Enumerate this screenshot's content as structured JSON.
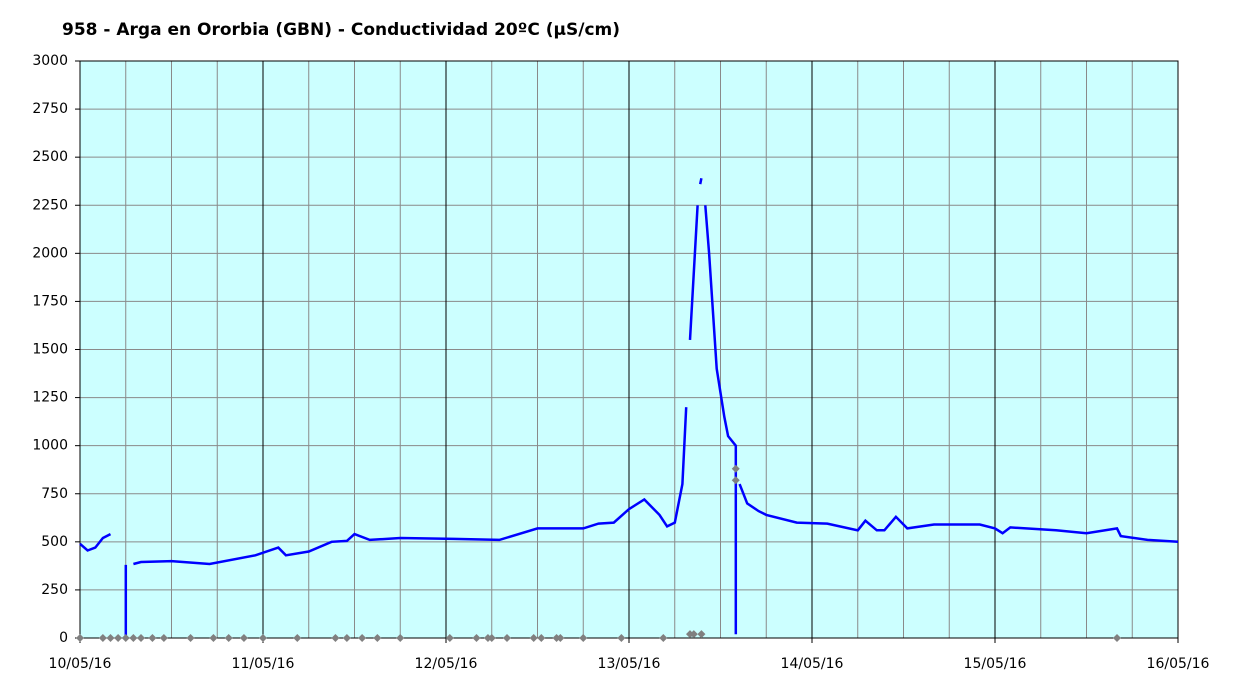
{
  "chart_data": {
    "type": "line",
    "title": "958 - Arga en Ororbia (GBN) - Conductividad 20ºC (µS/cm)",
    "xlim": [
      "2016-05-10T00:00",
      "2016-05-16T00:00"
    ],
    "xticks": [
      {
        "value": "2016-05-10T00:00",
        "label": "10/05/16"
      },
      {
        "value": "2016-05-11T00:00",
        "label": "11/05/16"
      },
      {
        "value": "2016-05-12T00:00",
        "label": "12/05/16"
      },
      {
        "value": "2016-05-13T00:00",
        "label": "13/05/16"
      },
      {
        "value": "2016-05-14T00:00",
        "label": "14/05/16"
      },
      {
        "value": "2016-05-15T00:00",
        "label": "15/05/16"
      },
      {
        "value": "2016-05-16T00:00",
        "label": "16/05/16"
      }
    ],
    "xminorticks": [
      "2016-05-10T06:00",
      "2016-05-10T12:00",
      "2016-05-10T18:00",
      "2016-05-11T06:00",
      "2016-05-11T12:00",
      "2016-05-11T18:00",
      "2016-05-12T06:00",
      "2016-05-12T12:00",
      "2016-05-12T18:00",
      "2016-05-13T06:00",
      "2016-05-13T12:00",
      "2016-05-13T18:00",
      "2016-05-14T06:00",
      "2016-05-14T12:00",
      "2016-05-14T18:00",
      "2016-05-15T06:00",
      "2016-05-15T12:00",
      "2016-05-15T18:00"
    ],
    "ylim": [
      0,
      3000
    ],
    "yticks": [
      0,
      250,
      500,
      750,
      1000,
      1250,
      1500,
      1750,
      2000,
      2250,
      2500,
      2750,
      3000
    ],
    "grid": true,
    "background": "#ccffff",
    "series": [
      {
        "color": "#0000ff",
        "line": true,
        "x": [
          "2016-05-10T00:00",
          "2016-05-10T01:00",
          "2016-05-10T02:00",
          "2016-05-10T03:00",
          "2016-05-10T04:00",
          "2016-05-10T05:00",
          "2016-05-10T06:00",
          "2016-05-10T06:00",
          "2016-05-10T06:30",
          "2016-05-10T07:00",
          "2016-05-10T08:00",
          "2016-05-10T12:00",
          "2016-05-10T17:00",
          "2016-05-10T23:00",
          "2016-05-11T02:00",
          "2016-05-11T03:00",
          "2016-05-11T06:00",
          "2016-05-11T09:00",
          "2016-05-11T11:00",
          "2016-05-11T12:00",
          "2016-05-11T14:00",
          "2016-05-11T18:00",
          "2016-05-12T01:00",
          "2016-05-12T07:00",
          "2016-05-12T12:00",
          "2016-05-12T18:00",
          "2016-05-12T20:00",
          "2016-05-12T22:00",
          "2016-05-13T00:00",
          "2016-05-13T02:00",
          "2016-05-13T04:00",
          "2016-05-13T05:00",
          "2016-05-13T06:00",
          "2016-05-13T07:00",
          "2016-05-13T07:30",
          "2016-05-13T07:45",
          "2016-05-13T08:00",
          "2016-05-13T09:00",
          "2016-05-13T09:15",
          "2016-05-13T09:20",
          "2016-05-13T09:30",
          "2016-05-13T09:45",
          "2016-05-13T10:00",
          "2016-05-13T10:30",
          "2016-05-13T11:00",
          "2016-05-13T11:30",
          "2016-05-13T12:30",
          "2016-05-13T13:00",
          "2016-05-13T14:00",
          "2016-05-13T14:00",
          "2016-05-13T14:15",
          "2016-05-13T14:30",
          "2016-05-13T15:30",
          "2016-05-13T17:00",
          "2016-05-13T18:00",
          "2016-05-13T22:00",
          "2016-05-14T02:00",
          "2016-05-14T06:00",
          "2016-05-14T07:00",
          "2016-05-14T08:30",
          "2016-05-14T09:30",
          "2016-05-14T11:00",
          "2016-05-14T12:30",
          "2016-05-14T16:00",
          "2016-05-14T22:00",
          "2016-05-15T00:00",
          "2016-05-15T01:00",
          "2016-05-15T02:00",
          "2016-05-15T08:00",
          "2016-05-15T12:00",
          "2016-05-15T16:00",
          "2016-05-15T16:30",
          "2016-05-15T20:00",
          "2016-05-16T00:00"
        ],
        "values": [
          490,
          455,
          470,
          520,
          540,
          null,
          380,
          0,
          null,
          385,
          395,
          400,
          385,
          430,
          470,
          430,
          450,
          500,
          505,
          540,
          510,
          520,
          515,
          510,
          570,
          570,
          595,
          600,
          670,
          720,
          640,
          580,
          600,
          800,
          1200,
          null,
          1550,
          2250,
          null,
          2360,
          2390,
          null,
          2250,
          2000,
          1700,
          1400,
          1150,
          1050,
          1000,
          20,
          null,
          800,
          700,
          660,
          640,
          600,
          595,
          560,
          610,
          560,
          560,
          630,
          570,
          590,
          590,
          570,
          545,
          575,
          560,
          545,
          570,
          530,
          510,
          500
        ]
      },
      {
        "color": "#808080",
        "line": false,
        "marker": "diamond",
        "x": [
          "2016-05-10T00:00",
          "2016-05-10T03:00",
          "2016-05-10T04:00",
          "2016-05-10T05:00",
          "2016-05-10T06:00",
          "2016-05-10T07:00",
          "2016-05-10T08:00",
          "2016-05-10T09:30",
          "2016-05-10T11:00",
          "2016-05-10T14:30",
          "2016-05-10T17:30",
          "2016-05-10T19:30",
          "2016-05-10T21:30",
          "2016-05-11T00:00",
          "2016-05-11T04:30",
          "2016-05-11T09:30",
          "2016-05-11T11:00",
          "2016-05-11T13:00",
          "2016-05-11T15:00",
          "2016-05-11T18:00",
          "2016-05-12T00:30",
          "2016-05-12T04:00",
          "2016-05-12T05:30",
          "2016-05-12T06:00",
          "2016-05-12T08:00",
          "2016-05-12T11:30",
          "2016-05-12T12:30",
          "2016-05-12T14:30",
          "2016-05-12T15:00",
          "2016-05-12T18:00",
          "2016-05-12T23:00",
          "2016-05-13T04:30",
          "2016-05-13T08:00",
          "2016-05-13T08:30",
          "2016-05-13T09:30",
          "2016-05-13T14:00",
          "2016-05-13T14:00",
          "2016-05-15T16:00"
        ],
        "values": [
          0,
          0,
          0,
          0,
          0,
          0,
          0,
          0,
          0,
          0,
          0,
          0,
          0,
          0,
          0,
          0,
          0,
          0,
          0,
          0,
          0,
          0,
          0,
          0,
          0,
          0,
          0,
          0,
          0,
          0,
          0,
          0,
          20,
          20,
          20,
          880,
          820,
          0
        ]
      }
    ]
  }
}
